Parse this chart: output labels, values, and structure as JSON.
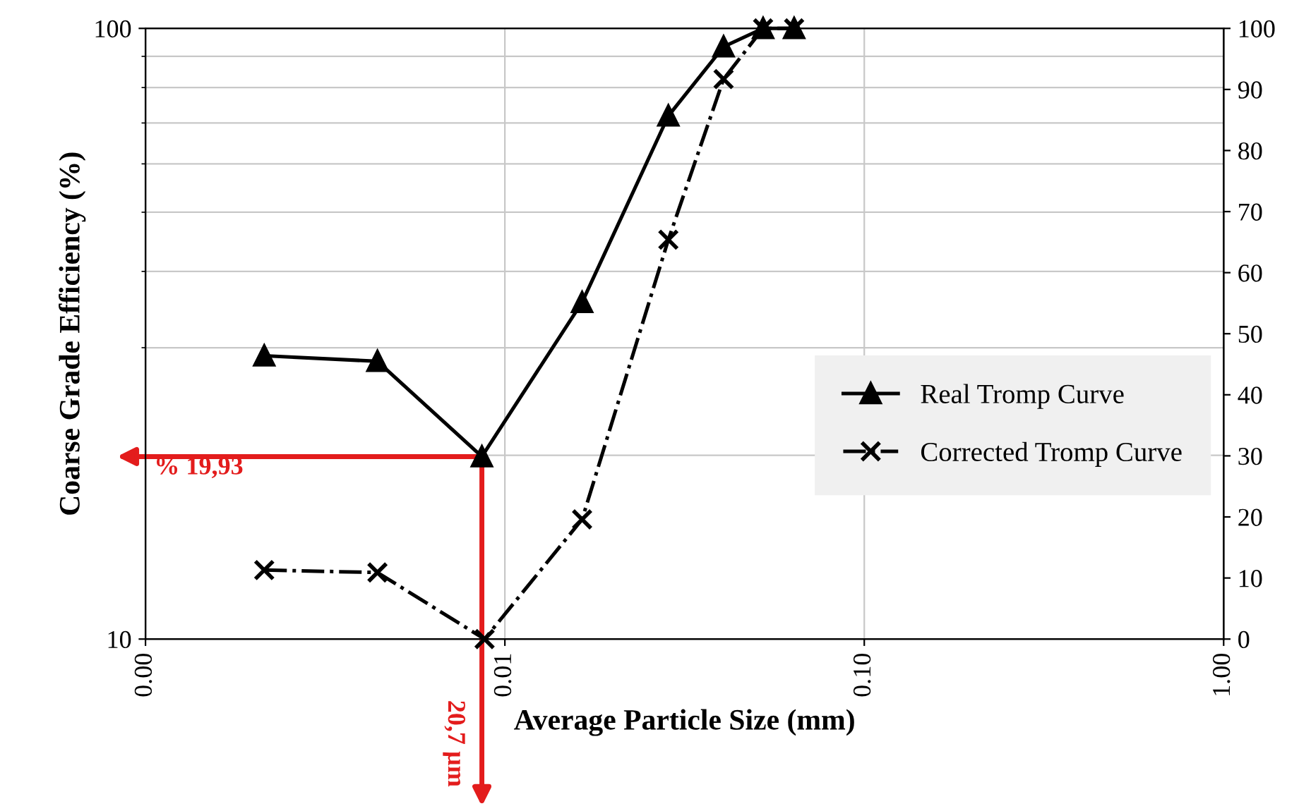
{
  "chart_data": {
    "type": "line",
    "xlabel": "Average Particle Size (mm)",
    "ylabel": "Coarse Grade Efficiency (%)",
    "log": "xy",
    "xlim": [
      0.001,
      1
    ],
    "xticks": [
      {
        "value": 0.001,
        "label": "0.00"
      },
      {
        "value": 0.01,
        "label": "0.01"
      },
      {
        "value": 0.1,
        "label": "0.10"
      },
      {
        "value": 1,
        "label": "1.00"
      }
    ],
    "ylim": [
      10,
      100
    ],
    "yticks": [
      10,
      100
    ],
    "y2lim": [
      0,
      100
    ],
    "y2ticks": [
      0,
      10,
      20,
      30,
      40,
      50,
      60,
      70,
      80,
      90,
      100
    ],
    "grid": true,
    "legend": "right",
    "series": [
      {
        "name": "Real Tromp Curve",
        "color": "#000000",
        "marker": "triangle",
        "line_style": "solid",
        "axis": "y",
        "x": [
          0.00214,
          0.00442,
          0.00863,
          0.0164,
          0.0285,
          0.0406,
          0.0523,
          0.0638
        ],
        "values": [
          29.1,
          28.5,
          19.9,
          35.6,
          71.9,
          93.3,
          100,
          100
        ]
      },
      {
        "name": "Corrected Tromp Curve",
        "color": "#000000",
        "marker": "cross",
        "line_style": "dashdot",
        "axis": "y2",
        "x": [
          0.00214,
          0.00442,
          0.00878,
          0.0164,
          0.0285,
          0.0406,
          0.0523,
          0.0638
        ],
        "values": [
          11.3,
          10.9,
          0,
          19.6,
          65.4,
          91.7,
          100,
          100
        ]
      }
    ],
    "annotations": [
      "% 19,93",
      "20,7 µm"
    ]
  }
}
